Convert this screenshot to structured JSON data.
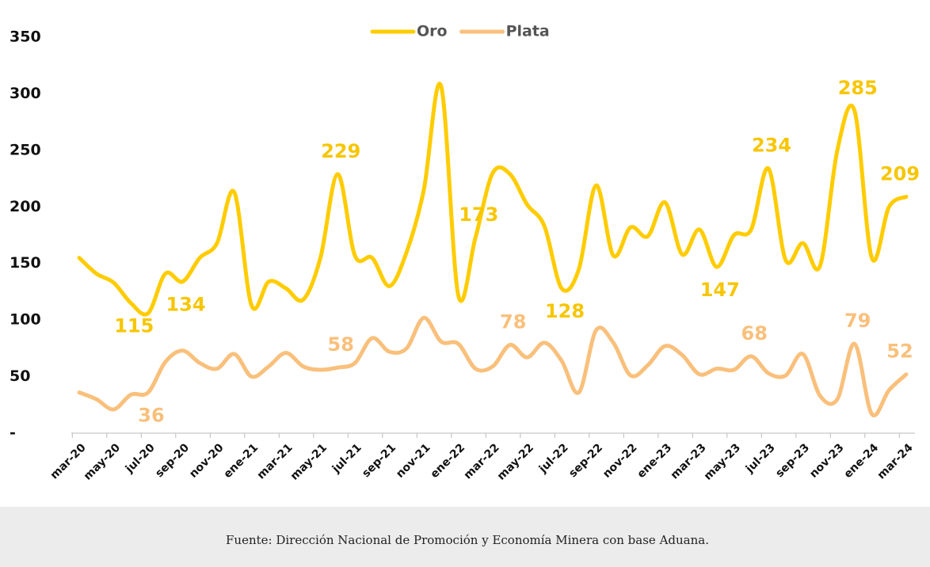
{
  "chart_data": {
    "type": "line",
    "categories": [
      "mar-20",
      null,
      "may-20",
      null,
      "jul-20",
      null,
      "sep-20",
      null,
      "nov-20",
      null,
      "ene-21",
      null,
      "mar-21",
      null,
      "may-21",
      null,
      "jul-21",
      null,
      "sep-21",
      null,
      "nov-21",
      null,
      "ene-22",
      null,
      "mar-22",
      null,
      "may-22",
      null,
      "jul-22",
      null,
      "sep-22",
      null,
      "nov-22",
      null,
      "ene-23",
      null,
      "mar-23",
      null,
      "may-23",
      null,
      "jul-23",
      null,
      "sep-23",
      null,
      "nov-23",
      null,
      "ene-24",
      null,
      "mar-24"
    ],
    "series": [
      {
        "name": "Oro",
        "color": "#FFCC00",
        "label_color": "#F7C600",
        "values": [
          155,
          141,
          133,
          115,
          106,
          141,
          134,
          155,
          168,
          213,
          113,
          134,
          128,
          118,
          155,
          229,
          157,
          155,
          130,
          160,
          215,
          307,
          122,
          173,
          230,
          229,
          202,
          183,
          128,
          145,
          219,
          157,
          182,
          174,
          204,
          158,
          180,
          147,
          175,
          180,
          234,
          153,
          168,
          148,
          250,
          285,
          155,
          200,
          209
        ],
        "value_labels": [
          null,
          null,
          null,
          "115",
          null,
          null,
          "134",
          null,
          null,
          null,
          null,
          null,
          null,
          null,
          null,
          "229",
          null,
          null,
          null,
          null,
          null,
          null,
          null,
          "173",
          null,
          null,
          null,
          null,
          "128",
          null,
          null,
          null,
          null,
          null,
          null,
          null,
          null,
          "147",
          null,
          null,
          "234",
          null,
          null,
          null,
          null,
          "285",
          null,
          null,
          "209"
        ]
      },
      {
        "name": "Plata",
        "color": "#F9C07C",
        "label_color": "#F9C07C",
        "values": [
          36,
          30,
          21,
          34,
          36,
          63,
          73,
          62,
          57,
          70,
          50,
          59,
          71,
          59,
          56,
          58,
          62,
          84,
          72,
          75,
          102,
          81,
          79,
          57,
          59,
          78,
          67,
          80,
          64,
          36,
          91,
          80,
          51,
          60,
          77,
          69,
          52,
          57,
          56,
          68,
          53,
          51,
          70,
          33,
          30,
          79,
          17,
          38,
          52
        ],
        "value_labels": [
          null,
          null,
          null,
          null,
          "36",
          null,
          null,
          null,
          null,
          null,
          null,
          null,
          null,
          null,
          null,
          "58",
          null,
          null,
          null,
          null,
          null,
          null,
          null,
          null,
          null,
          "78",
          null,
          null,
          null,
          null,
          null,
          null,
          null,
          null,
          null,
          null,
          null,
          null,
          null,
          "68",
          null,
          null,
          null,
          null,
          null,
          "79",
          null,
          null,
          "52"
        ]
      }
    ],
    "ylim": [
      0,
      350
    ],
    "yticks": [
      {
        "value": 0,
        "label": "-"
      },
      50,
      100,
      150,
      200,
      250,
      300,
      350
    ],
    "grid": false,
    "legend": "top",
    "source": "Fuente: Dirección Nacional de Promoción y Economía Minera con base Aduana."
  }
}
